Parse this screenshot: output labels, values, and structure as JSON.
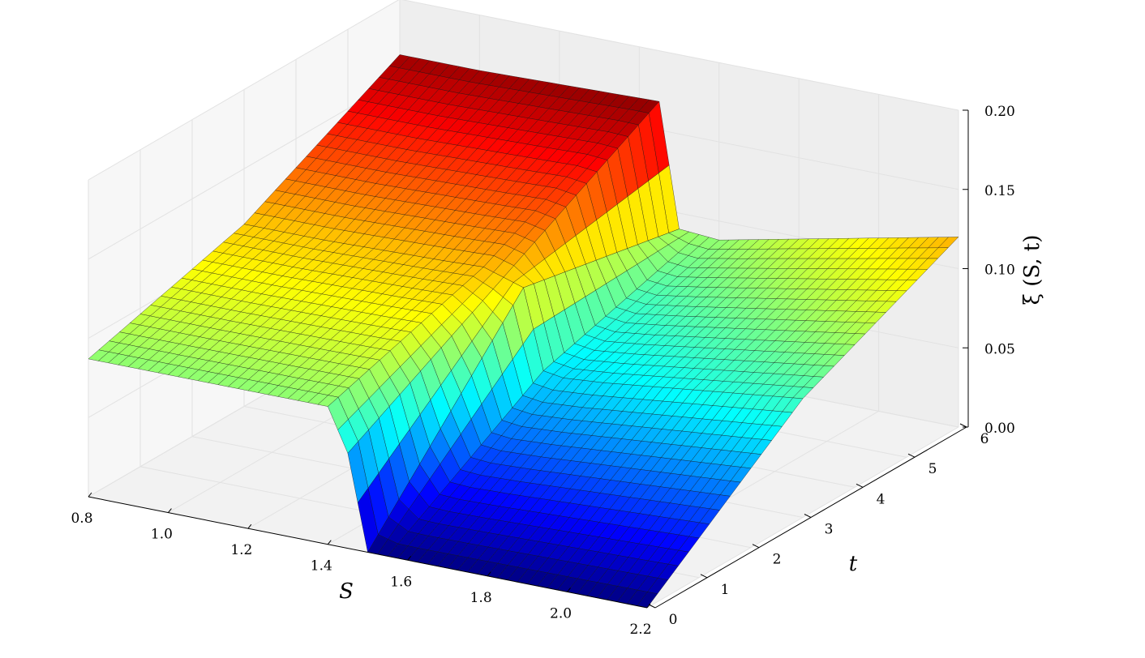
{
  "chart_data": {
    "type": "surface3d",
    "title": "",
    "xlabel": "S",
    "ylabel": "t",
    "zlabel": "ξ (S, t)",
    "xlim": [
      0.8,
      2.2
    ],
    "ylim": [
      0,
      6
    ],
    "zlim": [
      0.0,
      0.2
    ],
    "xticks": [
      "0.8",
      "1.0",
      "1.2",
      "1.4",
      "1.6",
      "1.8",
      "2.0",
      "2.2"
    ],
    "yticks": [
      "0",
      "1",
      "2",
      "3",
      "4",
      "5",
      "6"
    ],
    "zticks": [
      "0.00",
      "0.05",
      "0.10",
      "0.15",
      "0.20"
    ],
    "colormap": "jet",
    "grid": true,
    "surface_profiles": [
      {
        "t": 0.0,
        "S": [
          0.8,
          1.0,
          1.3,
          1.4,
          1.45,
          1.5,
          1.6,
          2.2
        ],
        "xi": [
          0.087,
          0.087,
          0.087,
          0.087,
          0.06,
          0.0,
          0.0,
          0.0
        ]
      },
      {
        "t": 3.0,
        "S": [
          0.8,
          1.0,
          1.3,
          1.4,
          1.5,
          1.55,
          1.6,
          1.7,
          2.2
        ],
        "xi": [
          0.115,
          0.115,
          0.117,
          0.118,
          0.11,
          0.06,
          0.058,
          0.06,
          0.075
        ]
      },
      {
        "t": 6.0,
        "S": [
          0.8,
          1.0,
          1.3,
          1.45,
          1.5,
          1.6,
          2.2
        ],
        "xi": [
          0.165,
          0.165,
          0.167,
          0.168,
          0.09,
          0.088,
          0.12
        ]
      }
    ]
  }
}
